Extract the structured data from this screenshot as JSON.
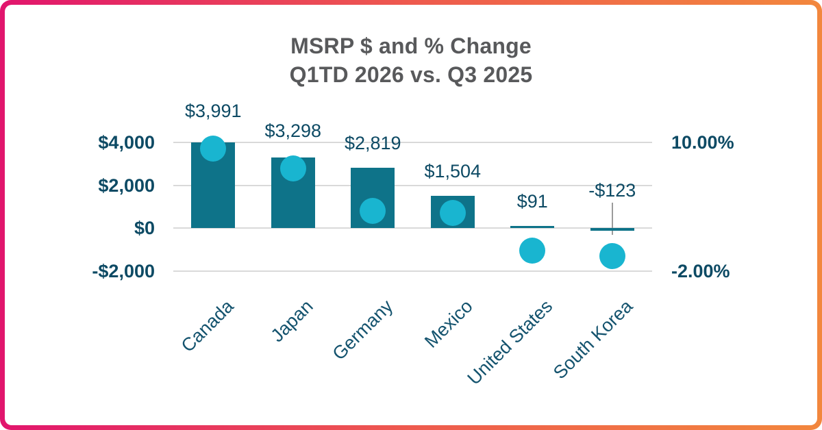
{
  "card": {
    "background": "#FFFFFF",
    "border_gradient": [
      "#E1156D",
      "#F2873D"
    ]
  },
  "chart_data": {
    "type": "combo-bar-dot",
    "title_lines": [
      "MSRP $ and % Change",
      "Q1TD 2026 vs. Q3 2025"
    ],
    "categories": [
      "Canada",
      "Japan",
      "Germany",
      "Mexico",
      "United States",
      "South Korea"
    ],
    "series": [
      {
        "name": "MSRP $ change",
        "type": "bar",
        "color": "#0E7389",
        "values": [
          3991,
          3298,
          2819,
          1504,
          91,
          -123
        ],
        "data_labels": [
          "$3,991",
          "$3,298",
          "$2,819",
          "$1,504",
          "$91",
          "-$123"
        ]
      },
      {
        "name": "% change",
        "type": "dot",
        "color": "#19B5D0",
        "values_estimated_pct": [
          9.4,
          7.6,
          3.6,
          3.4,
          -0.1,
          -0.6
        ]
      }
    ],
    "left_axis": {
      "ticks": [
        {
          "label": "$4,000",
          "value": 4000
        },
        {
          "label": "$2,000",
          "value": 2000
        },
        {
          "label": "$0",
          "value": 0
        },
        {
          "label": "-$2,000",
          "value": -2000
        }
      ],
      "range": [
        -2000,
        4000
      ]
    },
    "right_axis": {
      "ticks": [
        {
          "label": "10.00%",
          "value": 10
        },
        {
          "label": "-2.00%",
          "value": -2
        }
      ],
      "range": [
        -2,
        10
      ]
    },
    "grid": true,
    "legend": "none",
    "annotations": {
      "leader_line_category": "South Korea"
    }
  },
  "colors": {
    "title": "#58595B",
    "axis_text": "#0D4A64",
    "category_text": "#14536E",
    "gridline": "#D9D9D9",
    "leader_line": "#9B9B9B",
    "bar": "#0E7389",
    "dot": "#19B5D0"
  }
}
